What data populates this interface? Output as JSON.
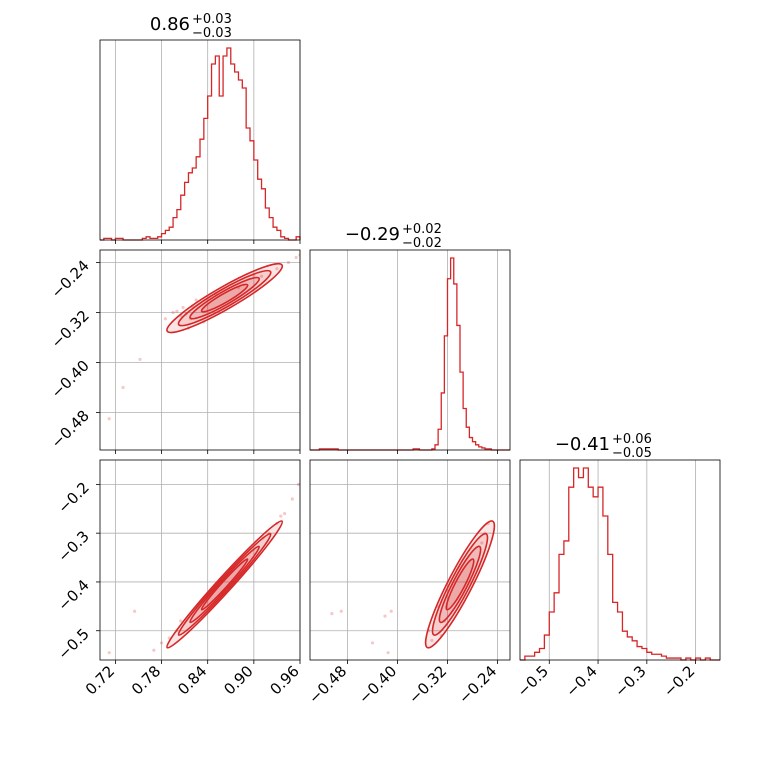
{
  "chart_data": {
    "type": "corner",
    "color": "#d62728",
    "parameters": [
      {
        "title": {
          "value": "0.86",
          "upper": "+0.03",
          "lower": "−0.03"
        },
        "range": [
          0.7,
          0.96
        ],
        "ticks": [
          0.72,
          0.78,
          0.84,
          0.9,
          0.96
        ],
        "tick_labels": [
          "0.72",
          "0.78",
          "0.84",
          "0.90",
          "0.96"
        ],
        "hist": {
          "edges": [
            0.7,
            0.705,
            0.71,
            0.715,
            0.72,
            0.725,
            0.73,
            0.735,
            0.74,
            0.745,
            0.75,
            0.755,
            0.76,
            0.765,
            0.77,
            0.775,
            0.78,
            0.785,
            0.79,
            0.795,
            0.8,
            0.805,
            0.81,
            0.815,
            0.82,
            0.825,
            0.83,
            0.835,
            0.84,
            0.845,
            0.85,
            0.855,
            0.86,
            0.865,
            0.87,
            0.875,
            0.88,
            0.885,
            0.89,
            0.895,
            0.9,
            0.905,
            0.91,
            0.915,
            0.92,
            0.925,
            0.93,
            0.935,
            0.94,
            0.945,
            0.95,
            0.955,
            0.96
          ],
          "counts": [
            0,
            1,
            1,
            0,
            1,
            1,
            0,
            0,
            0,
            0,
            0,
            1,
            2,
            1,
            1,
            2,
            4,
            6,
            8,
            14,
            19,
            28,
            36,
            42,
            45,
            52,
            63,
            76,
            90,
            110,
            115,
            90,
            115,
            120,
            110,
            105,
            100,
            95,
            70,
            62,
            50,
            38,
            32,
            20,
            14,
            8,
            6,
            2,
            1,
            0,
            0,
            2
          ]
        }
      },
      {
        "title": {
          "value": "−0.29",
          "upper": "+0.02",
          "lower": "−0.02"
        },
        "range": [
          -0.54,
          -0.22
        ],
        "ticks": [
          -0.48,
          -0.4,
          -0.32,
          -0.24
        ],
        "tick_labels": [
          "−0.48",
          "−0.40",
          "−0.32",
          "−0.24"
        ],
        "hist": {
          "edges": [
            -0.54,
            -0.535,
            -0.53,
            -0.525,
            -0.52,
            -0.515,
            -0.51,
            -0.505,
            -0.5,
            -0.495,
            -0.49,
            -0.485,
            -0.48,
            -0.475,
            -0.47,
            -0.465,
            -0.46,
            -0.455,
            -0.45,
            -0.445,
            -0.44,
            -0.435,
            -0.43,
            -0.425,
            -0.42,
            -0.415,
            -0.41,
            -0.405,
            -0.4,
            -0.395,
            -0.39,
            -0.385,
            -0.38,
            -0.375,
            -0.37,
            -0.365,
            -0.36,
            -0.355,
            -0.35,
            -0.345,
            -0.34,
            -0.335,
            -0.33,
            -0.325,
            -0.32,
            -0.315,
            -0.31,
            -0.305,
            -0.3,
            -0.295,
            -0.29,
            -0.285,
            -0.28,
            -0.275,
            -0.27,
            -0.265,
            -0.26,
            -0.255,
            -0.25,
            -0.245,
            -0.24,
            -0.235,
            -0.23,
            -0.225,
            -0.22
          ],
          "counts": [
            0,
            0,
            0,
            1,
            1,
            1,
            1,
            1,
            1,
            0,
            0,
            0,
            0,
            0,
            0,
            0,
            0,
            0,
            0,
            0,
            0,
            0,
            0,
            0,
            0,
            0,
            0,
            0,
            0,
            0,
            0,
            0,
            0,
            1,
            1,
            0,
            0,
            0,
            0,
            1,
            5,
            20,
            55,
            110,
            165,
            185,
            160,
            120,
            75,
            40,
            22,
            12,
            8,
            5,
            3,
            2,
            1,
            1,
            0,
            0,
            0,
            0,
            0,
            0
          ]
        }
      },
      {
        "title": {
          "value": "−0.41",
          "upper": "+0.06",
          "lower": "−0.05"
        },
        "range": [
          -0.56,
          -0.15
        ],
        "ticks": [
          -0.5,
          -0.4,
          -0.3,
          -0.2
        ],
        "tick_labels": [
          "−0.5",
          "−0.4",
          "−0.3",
          "−0.2"
        ],
        "hist": {
          "edges": [
            -0.56,
            -0.55,
            -0.54,
            -0.53,
            -0.52,
            -0.51,
            -0.5,
            -0.49,
            -0.48,
            -0.47,
            -0.46,
            -0.45,
            -0.44,
            -0.43,
            -0.42,
            -0.41,
            -0.4,
            -0.39,
            -0.38,
            -0.37,
            -0.36,
            -0.35,
            -0.34,
            -0.33,
            -0.32,
            -0.31,
            -0.3,
            -0.29,
            -0.28,
            -0.27,
            -0.26,
            -0.25,
            -0.24,
            -0.23,
            -0.22,
            -0.21,
            -0.2,
            -0.19,
            -0.18,
            -0.17,
            -0.16,
            -0.15
          ],
          "counts": [
            0,
            2,
            2,
            4,
            6,
            13,
            25,
            35,
            55,
            62,
            90,
            100,
            95,
            100,
            90,
            85,
            90,
            75,
            55,
            30,
            25,
            15,
            12,
            10,
            7,
            6,
            4,
            3,
            3,
            2,
            1,
            1,
            1,
            0,
            1,
            0,
            1,
            0,
            1,
            0,
            0
          ]
        }
      }
    ],
    "pairs": [
      {
        "x_param": 0,
        "y_param": 1,
        "ellipses": [
          {
            "cx": 0.862,
            "cy": -0.297,
            "sx": 0.03,
            "sy": 0.022,
            "rho": 0.93,
            "n": 1.0
          },
          {
            "cx": 0.862,
            "cy": -0.297,
            "sx": 0.03,
            "sy": 0.022,
            "rho": 0.93,
            "n": 1.5
          },
          {
            "cx": 0.862,
            "cy": -0.297,
            "sx": 0.03,
            "sy": 0.022,
            "rho": 0.93,
            "n": 2.0
          },
          {
            "cx": 0.862,
            "cy": -0.297,
            "sx": 0.03,
            "sy": 0.022,
            "rho": 0.93,
            "n": 2.5
          }
        ],
        "points": [
          [
            0.805,
            -0.325
          ],
          [
            0.812,
            -0.322
          ],
          [
            0.8,
            -0.318
          ],
          [
            0.818,
            -0.33
          ],
          [
            0.82,
            -0.31
          ],
          [
            0.93,
            -0.25
          ],
          [
            0.945,
            -0.24
          ],
          [
            0.955,
            -0.232
          ],
          [
            0.96,
            -0.228
          ],
          [
            0.752,
            -0.395
          ],
          [
            0.785,
            -0.33
          ],
          [
            0.795,
            -0.32
          ],
          [
            0.808,
            -0.312
          ],
          [
            0.73,
            -0.44
          ],
          [
            0.712,
            -0.49
          ],
          [
            0.835,
            -0.335
          ],
          [
            0.85,
            -0.29
          ],
          [
            0.88,
            -0.28
          ],
          [
            0.9,
            -0.26
          ],
          [
            0.91,
            -0.262
          ],
          [
            0.815,
            -0.345
          ],
          [
            0.825,
            -0.3
          ]
        ]
      },
      {
        "x_param": 0,
        "y_param": 2,
        "ellipses": [
          {
            "cx": 0.862,
            "cy": -0.405,
            "sx": 0.03,
            "sy": 0.052,
            "rho": 0.985,
            "n": 1.0
          },
          {
            "cx": 0.862,
            "cy": -0.405,
            "sx": 0.03,
            "sy": 0.052,
            "rho": 0.985,
            "n": 1.5
          },
          {
            "cx": 0.862,
            "cy": -0.405,
            "sx": 0.03,
            "sy": 0.052,
            "rho": 0.985,
            "n": 2.0
          },
          {
            "cx": 0.862,
            "cy": -0.405,
            "sx": 0.03,
            "sy": 0.052,
            "rho": 0.985,
            "n": 2.5
          }
        ],
        "points": [
          [
            0.92,
            -0.3
          ],
          [
            0.93,
            -0.28
          ],
          [
            0.94,
            -0.26
          ],
          [
            0.95,
            -0.23
          ],
          [
            0.958,
            -0.2
          ],
          [
            0.8,
            -0.5
          ],
          [
            0.79,
            -0.515
          ],
          [
            0.78,
            -0.525
          ],
          [
            0.77,
            -0.54
          ],
          [
            0.712,
            -0.545
          ],
          [
            0.745,
            -0.46
          ],
          [
            0.805,
            -0.48
          ],
          [
            0.912,
            -0.31
          ],
          [
            0.935,
            -0.265
          ]
        ]
      },
      {
        "x_param": 1,
        "y_param": 2,
        "ellipses": [
          {
            "cx": -0.3,
            "cy": -0.405,
            "sx": 0.022,
            "sy": 0.052,
            "rho": 0.92,
            "n": 1.0
          },
          {
            "cx": -0.3,
            "cy": -0.405,
            "sx": 0.022,
            "sy": 0.052,
            "rho": 0.92,
            "n": 1.5
          },
          {
            "cx": -0.3,
            "cy": -0.405,
            "sx": 0.022,
            "sy": 0.052,
            "rho": 0.92,
            "n": 2.0
          },
          {
            "cx": -0.3,
            "cy": -0.405,
            "sx": 0.022,
            "sy": 0.052,
            "rho": 0.92,
            "n": 2.5
          }
        ],
        "points": [
          [
            -0.505,
            -0.465
          ],
          [
            -0.49,
            -0.46
          ],
          [
            -0.42,
            -0.47
          ],
          [
            -0.41,
            -0.46
          ],
          [
            -0.35,
            -0.5
          ],
          [
            -0.345,
            -0.52
          ],
          [
            -0.33,
            -0.51
          ],
          [
            -0.26,
            -0.3
          ],
          [
            -0.255,
            -0.28
          ],
          [
            -0.265,
            -0.32
          ],
          [
            -0.335,
            -0.45
          ],
          [
            -0.325,
            -0.48
          ],
          [
            -0.415,
            -0.545
          ],
          [
            -0.44,
            -0.525
          ]
        ]
      }
    ]
  }
}
